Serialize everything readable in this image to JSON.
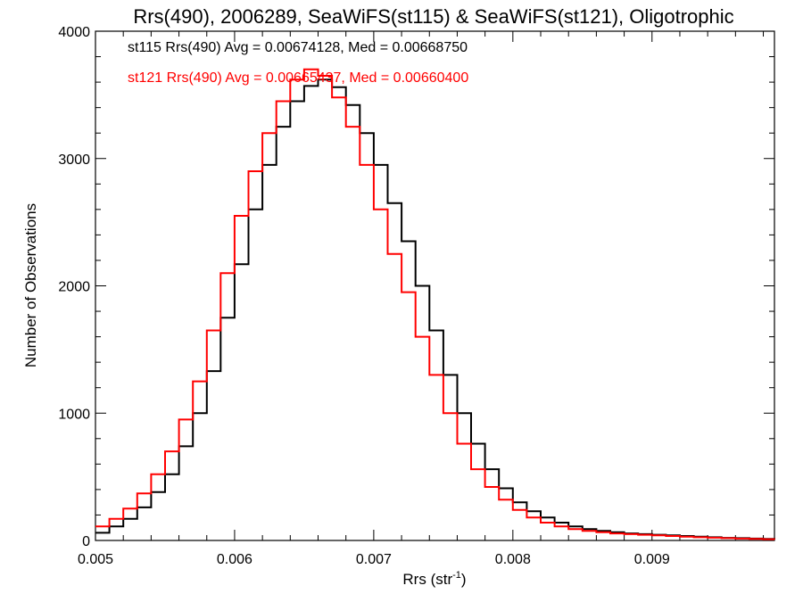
{
  "chart_data": {
    "type": "line",
    "style": "step-histogram",
    "title": "Rrs(490), 2006289, SeaWiFS(st115) & SeaWiFS(st121), Oligotrophic",
    "xlabel": "Rrs (str",
    "xlabel_sup": "-1",
    "xlabel_close": ")",
    "ylabel": "Number of Observations",
    "xlim": [
      0.005,
      0.00988
    ],
    "ylim": [
      0,
      4000
    ],
    "x_ticks": [
      0.005,
      0.006,
      0.007,
      0.008,
      0.009
    ],
    "x_tick_labels": [
      "0.005",
      "0.006",
      "0.007",
      "0.008",
      "0.009"
    ],
    "y_ticks": [
      0,
      1000,
      2000,
      3000,
      4000
    ],
    "y_tick_labels": [
      "0",
      "1000",
      "2000",
      "3000",
      "4000"
    ],
    "grid": false,
    "legend": {
      "placement": "top-left",
      "entries": [
        {
          "text": "st115 Rrs(490) Avg = 0.00674128, Med = 0.00668750",
          "color": "#000000"
        },
        {
          "text": "st121 Rrs(490) Avg = 0.00665437, Med = 0.00660400",
          "color": "#ff0000"
        }
      ]
    },
    "series": [
      {
        "color": "#000000",
        "x": [
          0.005,
          0.0051,
          0.0052,
          0.0053,
          0.0054,
          0.0055,
          0.0056,
          0.0057,
          0.0058,
          0.0059,
          0.006,
          0.0061,
          0.0062,
          0.0063,
          0.0064,
          0.0065,
          0.0066,
          0.0067,
          0.0068,
          0.0069,
          0.007,
          0.0071,
          0.0072,
          0.0073,
          0.0074,
          0.0075,
          0.0076,
          0.0077,
          0.0078,
          0.0079,
          0.008,
          0.0081,
          0.0082,
          0.0083,
          0.0084,
          0.0085,
          0.0086,
          0.0087,
          0.0088,
          0.0089,
          0.009,
          0.0091,
          0.0092,
          0.0093,
          0.0094,
          0.0095,
          0.0096,
          0.0097,
          0.0098,
          0.00988
        ],
        "values": [
          60,
          110,
          170,
          260,
          380,
          520,
          740,
          1000,
          1330,
          1750,
          2170,
          2600,
          2950,
          3250,
          3450,
          3570,
          3620,
          3560,
          3420,
          3200,
          2950,
          2650,
          2350,
          2000,
          1650,
          1300,
          1000,
          760,
          560,
          410,
          300,
          230,
          180,
          140,
          110,
          90,
          75,
          65,
          55,
          50,
          45,
          40,
          35,
          30,
          25,
          20,
          18,
          15,
          12,
          10
        ]
      },
      {
        "color": "#ff0000",
        "x": [
          0.005,
          0.0051,
          0.0052,
          0.0053,
          0.0054,
          0.0055,
          0.0056,
          0.0057,
          0.0058,
          0.0059,
          0.006,
          0.0061,
          0.0062,
          0.0063,
          0.0064,
          0.0065,
          0.0066,
          0.0067,
          0.0068,
          0.0069,
          0.007,
          0.0071,
          0.0072,
          0.0073,
          0.0074,
          0.0075,
          0.0076,
          0.0077,
          0.0078,
          0.0079,
          0.008,
          0.0081,
          0.0082,
          0.0083,
          0.0084,
          0.0085,
          0.0086,
          0.0087,
          0.0088,
          0.0089,
          0.009,
          0.0091,
          0.0092,
          0.0093,
          0.0094,
          0.0095,
          0.0096,
          0.0097,
          0.0098,
          0.00988
        ],
        "values": [
          110,
          170,
          250,
          370,
          520,
          700,
          950,
          1250,
          1650,
          2100,
          2550,
          2900,
          3200,
          3450,
          3620,
          3700,
          3650,
          3480,
          3250,
          2950,
          2600,
          2250,
          1950,
          1600,
          1300,
          1000,
          760,
          560,
          420,
          320,
          240,
          180,
          140,
          110,
          90,
          75,
          65,
          55,
          50,
          45,
          40,
          35,
          30,
          25,
          22,
          18,
          15,
          12,
          10,
          8
        ]
      }
    ]
  }
}
